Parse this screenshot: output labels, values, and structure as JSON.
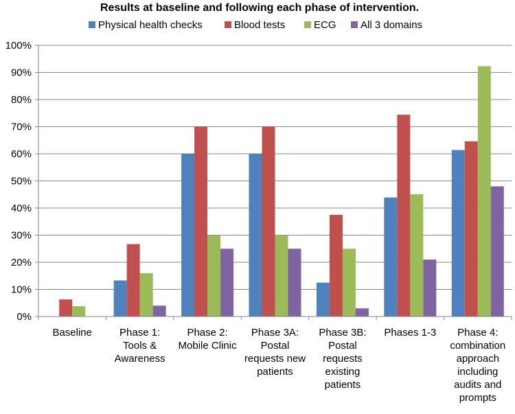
{
  "chart_data": {
    "type": "bar",
    "title": "Results at baseline and following each phase of intervention.",
    "categories": [
      "Baseline",
      "Phase 1: Tools & Awareness",
      "Phase 2: Mobile Clinic",
      "Phase 3A: Postal requests new patients",
      "Phase 3B: Postal requests existing patients",
      "Phases 1-3",
      "Phase 4: combination approach including audits and prompts"
    ],
    "category_lines": [
      [
        "Baseline"
      ],
      [
        "Phase 1:",
        "Tools &",
        "Awareness"
      ],
      [
        "Phase 2:",
        "Mobile Clinic"
      ],
      [
        "Phase 3A:",
        "Postal",
        "requests new",
        "patients"
      ],
      [
        "Phase 3B:",
        "Postal",
        "requests",
        "existing",
        "patients"
      ],
      [
        "Phases 1-3"
      ],
      [
        "Phase 4:",
        "combination",
        "approach",
        "including",
        "audits and",
        "prompts"
      ]
    ],
    "series": [
      {
        "name": "Physical health checks",
        "color": "#4F81BD",
        "values": [
          0,
          13.3,
          60,
          60,
          12.5,
          43.9,
          61.4
        ]
      },
      {
        "name": "Blood tests",
        "color": "#C0504D",
        "values": [
          6.3,
          26.7,
          70,
          70,
          37.5,
          74.4,
          64.6
        ]
      },
      {
        "name": "ECG",
        "color": "#9BBB59",
        "values": [
          3.8,
          16,
          30,
          30,
          25,
          45.1,
          92.3
        ]
      },
      {
        "name": "All 3 domains",
        "color": "#8064A2",
        "values": [
          0,
          4,
          25,
          25,
          3,
          21,
          48
        ]
      }
    ],
    "ylim": [
      0,
      100
    ],
    "yticks": [
      "0%",
      "10%",
      "20%",
      "30%",
      "40%",
      "50%",
      "60%",
      "70%",
      "80%",
      "90%",
      "100%"
    ],
    "grid": true,
    "legend_position": "top"
  }
}
